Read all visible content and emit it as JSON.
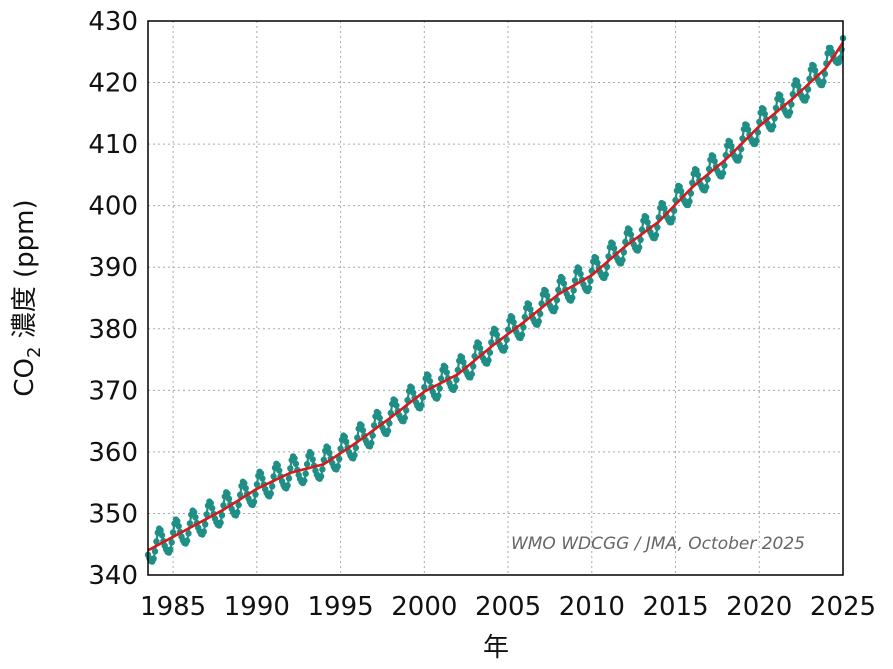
{
  "chart_data": {
    "type": "line",
    "title": "",
    "xlabel": "年",
    "ylabel": "CO2 濃度 (ppm)",
    "ylabel_parts": {
      "pre": "CO",
      "sub": "2",
      "post": " 濃度 (ppm)"
    },
    "xlim": [
      1983.5,
      2025.0
    ],
    "ylim": [
      340,
      430
    ],
    "x_ticks": [
      "1985",
      "1990",
      "1995",
      "2000",
      "2005",
      "2010",
      "2015",
      "2020",
      "2025"
    ],
    "y_ticks": [
      "340",
      "350",
      "360",
      "370",
      "380",
      "390",
      "400",
      "410",
      "420",
      "430"
    ],
    "grid": true,
    "annotation": "WMO WDCGG / JMA, October 2025",
    "seasonal_amplitude_ppm": 2.3,
    "series": [
      {
        "role": "monthly_mean",
        "color": "#1f8f86",
        "marker": "circle",
        "trend_anchor_x": [
          1983.5,
          1985,
          1988,
          1990,
          1992,
          1994,
          1996,
          1998,
          2000,
          2002,
          2004,
          2006,
          2008,
          2010,
          2012,
          2014,
          2016,
          2018,
          2020,
          2022,
          2024,
          2025.0
        ],
        "trend_anchor_y": [
          344.0,
          346.2,
          350.6,
          354.0,
          356.6,
          358.0,
          361.6,
          365.6,
          369.8,
          372.6,
          377.1,
          381.2,
          385.6,
          388.7,
          393.4,
          397.4,
          403.0,
          407.5,
          412.9,
          417.4,
          422.4,
          426.5
        ]
      },
      {
        "role": "trend",
        "color": "#d7191c",
        "x": [
          1983.5,
          1985,
          1988,
          1990,
          1992,
          1994,
          1996,
          1998,
          2000,
          2002,
          2004,
          2006,
          2008,
          2010,
          2012,
          2014,
          2016,
          2018,
          2020,
          2022,
          2024,
          2025.0
        ],
        "y": [
          344.0,
          346.2,
          350.6,
          354.0,
          356.6,
          358.0,
          361.6,
          365.6,
          369.8,
          372.6,
          377.1,
          381.2,
          385.6,
          388.7,
          393.4,
          397.4,
          403.0,
          407.5,
          412.9,
          417.4,
          422.4,
          426.5
        ]
      }
    ]
  }
}
